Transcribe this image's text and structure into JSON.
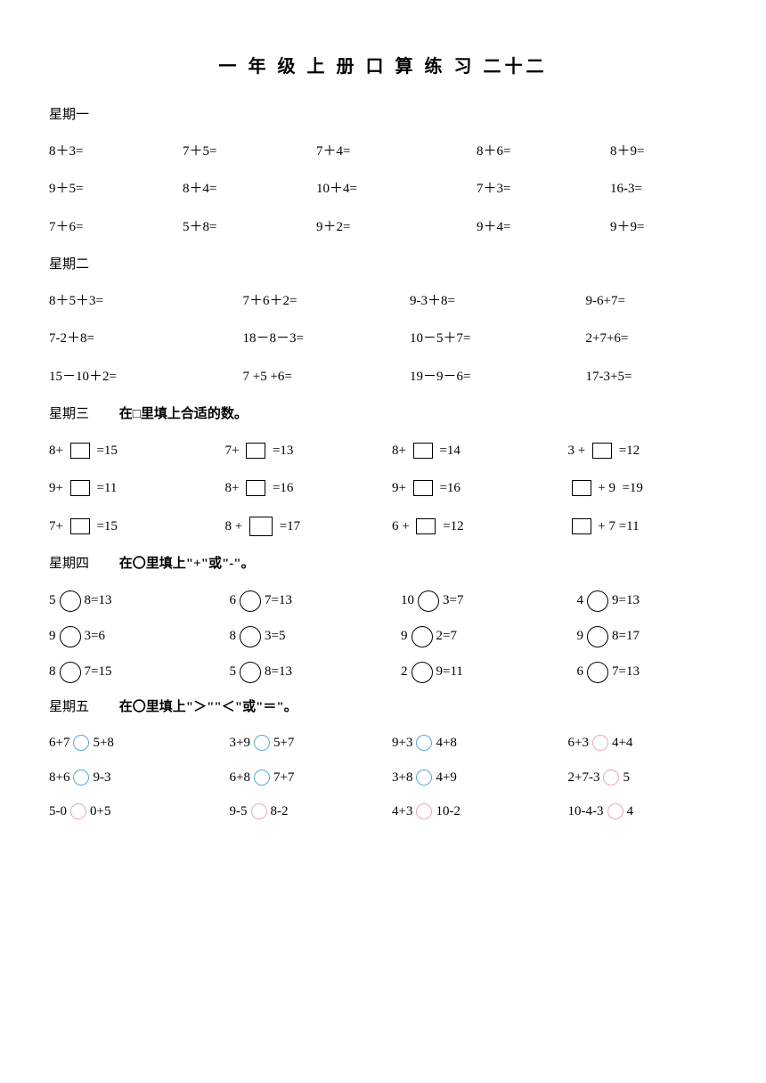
{
  "title": "一 年 级 上 册  口  算  练 习  二十二",
  "day1": {
    "label": "星期一",
    "rows": [
      [
        "8＋3=",
        "7＋5=",
        "7＋4=",
        "8＋6=",
        "8＋9="
      ],
      [
        "9＋5=",
        "8＋4=",
        "10＋4=",
        "7＋3=",
        "16-3="
      ],
      [
        "7＋6=",
        "5＋8=",
        "9＋2=",
        "9＋4=",
        "9＋9="
      ]
    ]
  },
  "day2": {
    "label": "星期二",
    "rows": [
      [
        "8＋5＋3=",
        "7＋6＋2=",
        "9-3＋8=",
        "9-6+7="
      ],
      [
        "7-2＋8=",
        "18－8－3=",
        "10－5＋7=",
        "2+7+6="
      ],
      [
        "15－10＋2=",
        "7 +5 +6=",
        "19－9－6=",
        "17-3+5="
      ]
    ]
  },
  "day3": {
    "label": "星期三",
    "instruction": "在□里填上合适的数。",
    "rows": [
      [
        {
          "pre": "8+ ",
          "post": " =15",
          "lg": false
        },
        {
          "pre": "7+ ",
          "post": " =13",
          "lg": false
        },
        {
          "pre": "8+ ",
          "post": " =14",
          "lg": false
        },
        {
          "pre": "3 + ",
          "post": " =12",
          "lg": false,
          "boxFirst": false
        }
      ],
      [
        {
          "pre": "9+ ",
          "post": " =11",
          "lg": false
        },
        {
          "pre": "8+ ",
          "post": " =16",
          "lg": false
        },
        {
          "pre": "9+ ",
          "post": " =16",
          "lg": false
        },
        {
          "pre": "",
          "post": " + 9  =19",
          "lg": false,
          "boxFirst": true
        }
      ],
      [
        {
          "pre": "7+ ",
          "post": " =15",
          "lg": false
        },
        {
          "pre": "8 + ",
          "post": " =17",
          "lg": true
        },
        {
          "pre": "6 + ",
          "post": " =12",
          "lg": false
        },
        {
          "pre": "",
          "post": " + 7 =11",
          "lg": false,
          "boxFirst": true
        }
      ]
    ]
  },
  "day4": {
    "label": "星期四",
    "instruction": "在〇里填上\"+\"或\"-\"。",
    "rows": [
      [
        {
          "l": "5",
          "r": "8=13"
        },
        {
          "l": "6",
          "r": "7=13"
        },
        {
          "l": "10",
          "r": "3=7"
        },
        {
          "l": "4",
          "r": "9=13"
        }
      ],
      [
        {
          "l": "9",
          "r": "3=6"
        },
        {
          "l": "8",
          "r": "3=5"
        },
        {
          "l": "9",
          "r": "2=7"
        },
        {
          "l": "9",
          "r": "8=17"
        }
      ],
      [
        {
          "l": "8",
          "r": "7=15"
        },
        {
          "l": "5",
          "r": "8=13"
        },
        {
          "l": "2",
          "r": "9=11"
        },
        {
          "l": "6",
          "r": "7=13"
        }
      ]
    ]
  },
  "day5": {
    "label": "星期五",
    "instruction": "在〇里填上\"＞\"\"＜\"或\"＝\"。",
    "colors": {
      "blue": "#5aa8d8",
      "pink": "#e8a8bc"
    },
    "rows": [
      [
        {
          "l": "6+7",
          "r": "5+8",
          "c": "blue"
        },
        {
          "l": "3+9",
          "r": "5+7",
          "c": "blue"
        },
        {
          "l": "9+3",
          "r": "4+8",
          "c": "blue"
        },
        {
          "l": "6+3",
          "r": "4+4",
          "c": "pink"
        }
      ],
      [
        {
          "l": "8+6",
          "r": "9-3",
          "c": "blue"
        },
        {
          "l": "6+8",
          "r": "7+7",
          "c": "blue"
        },
        {
          "l": "3+8",
          "r": "4+9",
          "c": "blue"
        },
        {
          "l": "2+7-3",
          "r": "5",
          "c": "pink"
        }
      ],
      [
        {
          "l": "5-0",
          "r": "0+5",
          "c": "pink"
        },
        {
          "l": "9-5",
          "r": "8-2",
          "c": "pink"
        },
        {
          "l": "4+3",
          "r": "10-2",
          "c": "pink"
        },
        {
          "l": "10-4-3",
          "r": "4",
          "c": "pink"
        }
      ]
    ]
  }
}
